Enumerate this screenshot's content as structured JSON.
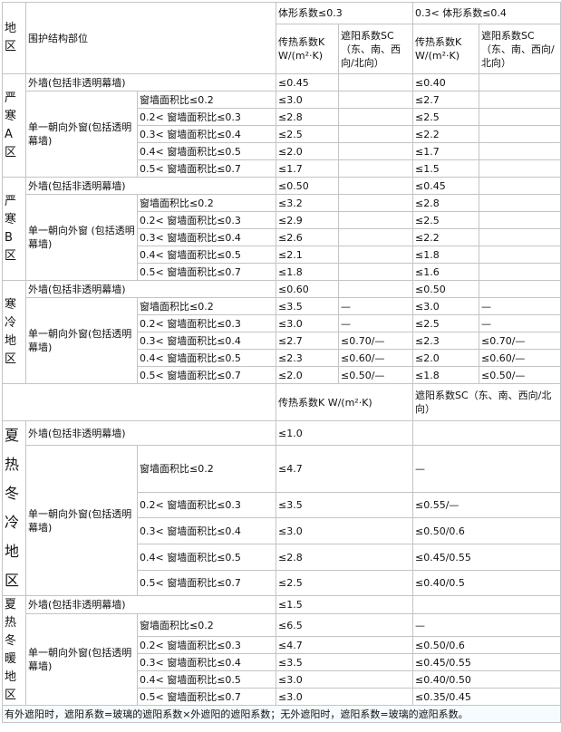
{
  "header": {
    "region": "地区",
    "part": "围护结构部位",
    "shape1": "体形系数≤0.3",
    "shape2": "0.3< 体形系数≤0.4",
    "k_label": "传热系数K W/(m²·K)",
    "sc_label": "遮阳系数SC（东、南、西向/北向）"
  },
  "regions": [
    {
      "name": "严寒A区",
      "wall": {
        "label": "外墙(包括非透明幕墙)",
        "k1": "≤0.45",
        "sc1": "",
        "k2": "≤0.40",
        "sc2": ""
      },
      "window_label": "单一朝向外窗(包括透明幕墙)",
      "windows": [
        {
          "ratio": "窗墙面积比≤0.2",
          "k1": "≤3.0",
          "sc1": "",
          "k2": "≤2.7",
          "sc2": ""
        },
        {
          "ratio": "0.2< 窗墙面积比≤0.3",
          "k1": "≤2.8",
          "sc1": "",
          "k2": "≤2.5",
          "sc2": ""
        },
        {
          "ratio": "0.3< 窗墙面积比≤0.4",
          "k1": "≤2.5",
          "sc1": "",
          "k2": "≤2.2",
          "sc2": ""
        },
        {
          "ratio": "0.4< 窗墙面积比≤0.5",
          "k1": "≤2.0",
          "sc1": "",
          "k2": "≤1.7",
          "sc2": ""
        },
        {
          "ratio": "0.5< 窗墙面积比≤0.7",
          "k1": "≤1.7",
          "sc1": "",
          "k2": "≤1.5",
          "sc2": ""
        }
      ]
    },
    {
      "name": "严寒B区",
      "wall": {
        "label": "外墙(包括非透明幕墙)",
        "k1": "≤0.50",
        "sc1": "",
        "k2": "≤0.45",
        "sc2": ""
      },
      "window_label": "单一朝向外窗 (包括透明幕墙)",
      "windows": [
        {
          "ratio": "窗墙面积比≤0.2",
          "k1": "≤3.2",
          "sc1": "",
          "k2": "≤2.8",
          "sc2": ""
        },
        {
          "ratio": "0.2< 窗墙面积比≤0.3",
          "k1": "≤2.9",
          "sc1": "",
          "k2": "≤2.5",
          "sc2": ""
        },
        {
          "ratio": "0.3< 窗墙面积比≤0.4",
          "k1": "≤2.6",
          "sc1": "",
          "k2": "≤2.2",
          "sc2": ""
        },
        {
          "ratio": "0.4< 窗墙面积比≤0.5",
          "k1": "≤2.1",
          "sc1": "",
          "k2": "≤1.8",
          "sc2": ""
        },
        {
          "ratio": "0.5< 窗墙面积比≤0.7",
          "k1": "≤1.8",
          "sc1": "",
          "k2": "≤1.6",
          "sc2": ""
        }
      ]
    },
    {
      "name": "寒冷地区",
      "wall": {
        "label": "外墙(包括非透明幕墙)",
        "k1": "≤0.60",
        "sc1": "",
        "k2": "≤0.50",
        "sc2": ""
      },
      "window_label": "单一朝向外窗(包括透明幕墙)",
      "windows": [
        {
          "ratio": "窗墙面积比≤0.2",
          "k1": "≤3.5",
          "sc1": "—",
          "k2": "≤3.0",
          "sc2": "—"
        },
        {
          "ratio": "0.2< 窗墙面积比≤0.3",
          "k1": "≤3.0",
          "sc1": "—",
          "k2": "≤2.5",
          "sc2": "—"
        },
        {
          "ratio": "0.3< 窗墙面积比≤0.4",
          "k1": "≤2.7",
          "sc1": "≤0.70/—",
          "k2": "≤2.3",
          "sc2": "≤0.70/—"
        },
        {
          "ratio": "0.4< 窗墙面积比≤0.5",
          "k1": "≤2.3",
          "sc1": "≤0.60/—",
          "k2": "≤2.0",
          "sc2": "≤0.60/—"
        },
        {
          "ratio": "0.5< 窗墙面积比≤0.7",
          "k1": "≤2.0",
          "sc1": "≤0.50/—",
          "k2": "≤1.8",
          "sc2": "≤0.50/—"
        }
      ]
    }
  ],
  "south_header": {
    "k_label": "传热系数K W/(m²·K)",
    "sc_label": "遮阳系数SC（东、南、西向/北向）"
  },
  "south_regions": [
    {
      "name": "夏热冬冷地区",
      "wall": {
        "label": "外墙(包括非透明幕墙)",
        "k": "≤1.0",
        "sc": ""
      },
      "window_label": "单一朝向外窗(包括透明幕墙)",
      "windows": [
        {
          "ratio": "窗墙面积比≤0.2",
          "k": "≤4.7",
          "sc": "—"
        },
        {
          "ratio": "0.2< 窗墙面积比≤0.3",
          "k": "≤3.5",
          "sc": "≤0.55/—"
        },
        {
          "ratio": "0.3< 窗墙面积比≤0.4",
          "k": "≤3.0",
          "sc": "≤0.50/0.6"
        },
        {
          "ratio": "0.4< 窗墙面积比≤0.5",
          "k": "≤2.8",
          "sc": "≤0.45/0.55"
        },
        {
          "ratio": "0.5< 窗墙面积比≤0.7",
          "k": "≤2.5",
          "sc": "≤0.40/0.5"
        }
      ]
    },
    {
      "name": "夏热冬暖地区",
      "wall": {
        "label": "外墙(包括非透明幕墙)",
        "k": "≤1.5",
        "sc": ""
      },
      "window_label": "单一朝向外窗(包括透明幕墙)",
      "windows": [
        {
          "ratio": "窗墙面积比≤0.2",
          "k": "≤6.5",
          "sc": "—"
        },
        {
          "ratio": "0.2< 窗墙面积比≤0.3",
          "k": "≤4.7",
          "sc": "≤0.50/0.6"
        },
        {
          "ratio": "0.3< 窗墙面积比≤0.4",
          "k": "≤3.5",
          "sc": "≤0.45/0.55"
        },
        {
          "ratio": "0.4< 窗墙面积比≤0.5",
          "k": "≤3.0",
          "sc": "≤0.40/0.50"
        },
        {
          "ratio": "0.5< 窗墙面积比≤0.7",
          "k": "≤3.0",
          "sc": "≤0.35/0.45"
        }
      ]
    }
  ],
  "note": "有外遮阳时，遮阳系数=玻璃的遮阳系数×外遮阳的遮阳系数；无外遮阳时，遮阳系数=玻璃的遮阳系数。"
}
